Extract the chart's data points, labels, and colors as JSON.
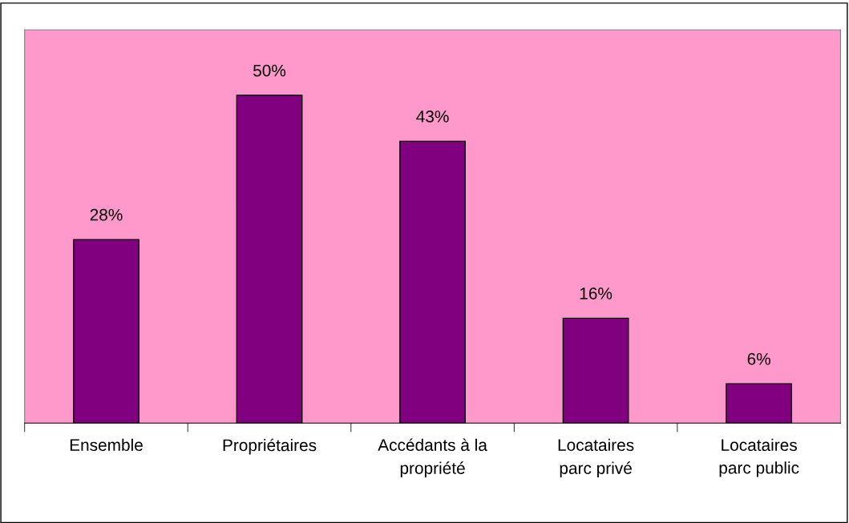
{
  "chart_data": {
    "type": "bar",
    "categories": [
      "Ensemble",
      "Propriétaires",
      "Accédants à la\npropriété",
      "Locataires\nparc privé",
      "Locataires\nparc public"
    ],
    "values": [
      28,
      50,
      43,
      16,
      6
    ],
    "value_labels": [
      "28%",
      "50%",
      "43%",
      "16%",
      "6%"
    ],
    "color": "#800080",
    "ylim": [
      0,
      60
    ],
    "tick_labels": "x",
    "grid": false,
    "legend": false
  }
}
